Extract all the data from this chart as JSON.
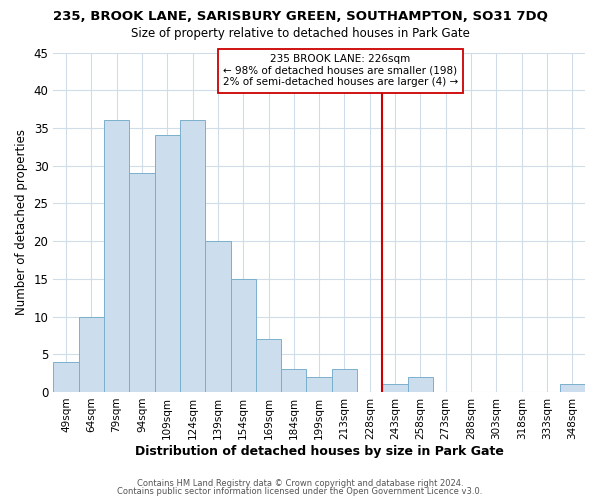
{
  "title_main": "235, BROOK LANE, SARISBURY GREEN, SOUTHAMPTON, SO31 7DQ",
  "title_sub": "Size of property relative to detached houses in Park Gate",
  "xlabel": "Distribution of detached houses by size in Park Gate",
  "ylabel": "Number of detached properties",
  "bar_labels": [
    "49sqm",
    "64sqm",
    "79sqm",
    "94sqm",
    "109sqm",
    "124sqm",
    "139sqm",
    "154sqm",
    "169sqm",
    "184sqm",
    "199sqm",
    "213sqm",
    "228sqm",
    "243sqm",
    "258sqm",
    "273sqm",
    "288sqm",
    "303sqm",
    "318sqm",
    "333sqm",
    "348sqm"
  ],
  "bar_heights": [
    4,
    10,
    36,
    29,
    34,
    36,
    20,
    15,
    7,
    3,
    2,
    3,
    0,
    1,
    2,
    0,
    0,
    0,
    0,
    0,
    1
  ],
  "bar_color": "#ccdded",
  "bar_edgecolor": "#7ab0cc",
  "vline_x_index": 12.5,
  "vline_color": "#cc0000",
  "annotation_title": "235 BROOK LANE: 226sqm",
  "annotation_line1": "← 98% of detached houses are smaller (198)",
  "annotation_line2": "2% of semi-detached houses are larger (4) →",
  "annotation_box_edgecolor": "#cc0000",
  "footnote1": "Contains HM Land Registry data © Crown copyright and database right 2024.",
  "footnote2": "Contains public sector information licensed under the Open Government Licence v3.0.",
  "ylim": [
    0,
    45
  ],
  "background_color": "#ffffff",
  "grid_color": "#d0dce8"
}
